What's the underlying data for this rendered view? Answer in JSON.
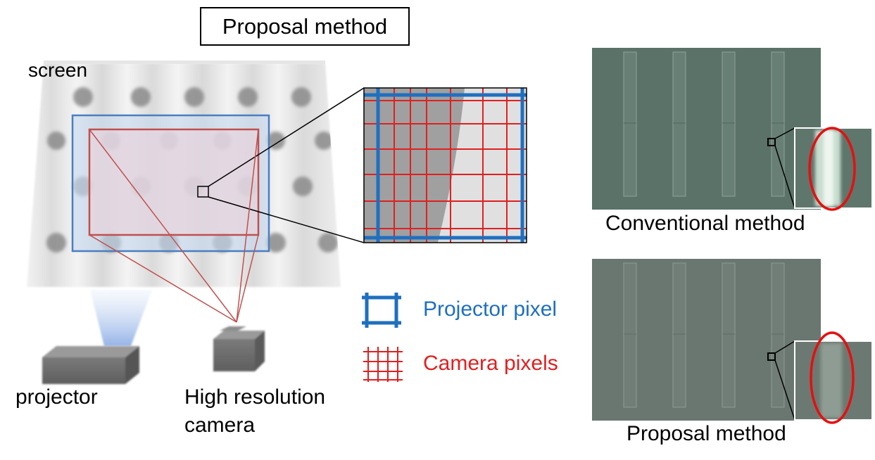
{
  "title": "Proposal method",
  "labels": {
    "screen": "screen",
    "projector": "projector",
    "camera_line1": "High resolution",
    "camera_line2": "camera",
    "conventional": "Conventional  method",
    "proposal": "Proposal  method"
  },
  "legend": {
    "projector_pixel": "Projector pixel",
    "camera_pixels": "Camera pixels"
  },
  "colors": {
    "projector_blue": "#1f6fbf",
    "camera_red": "#e02020",
    "frame_red": "#c0504d",
    "highlight_red": "#e41010"
  },
  "icons": {
    "projector": "projector-box-icon",
    "camera": "camera-box-icon"
  }
}
